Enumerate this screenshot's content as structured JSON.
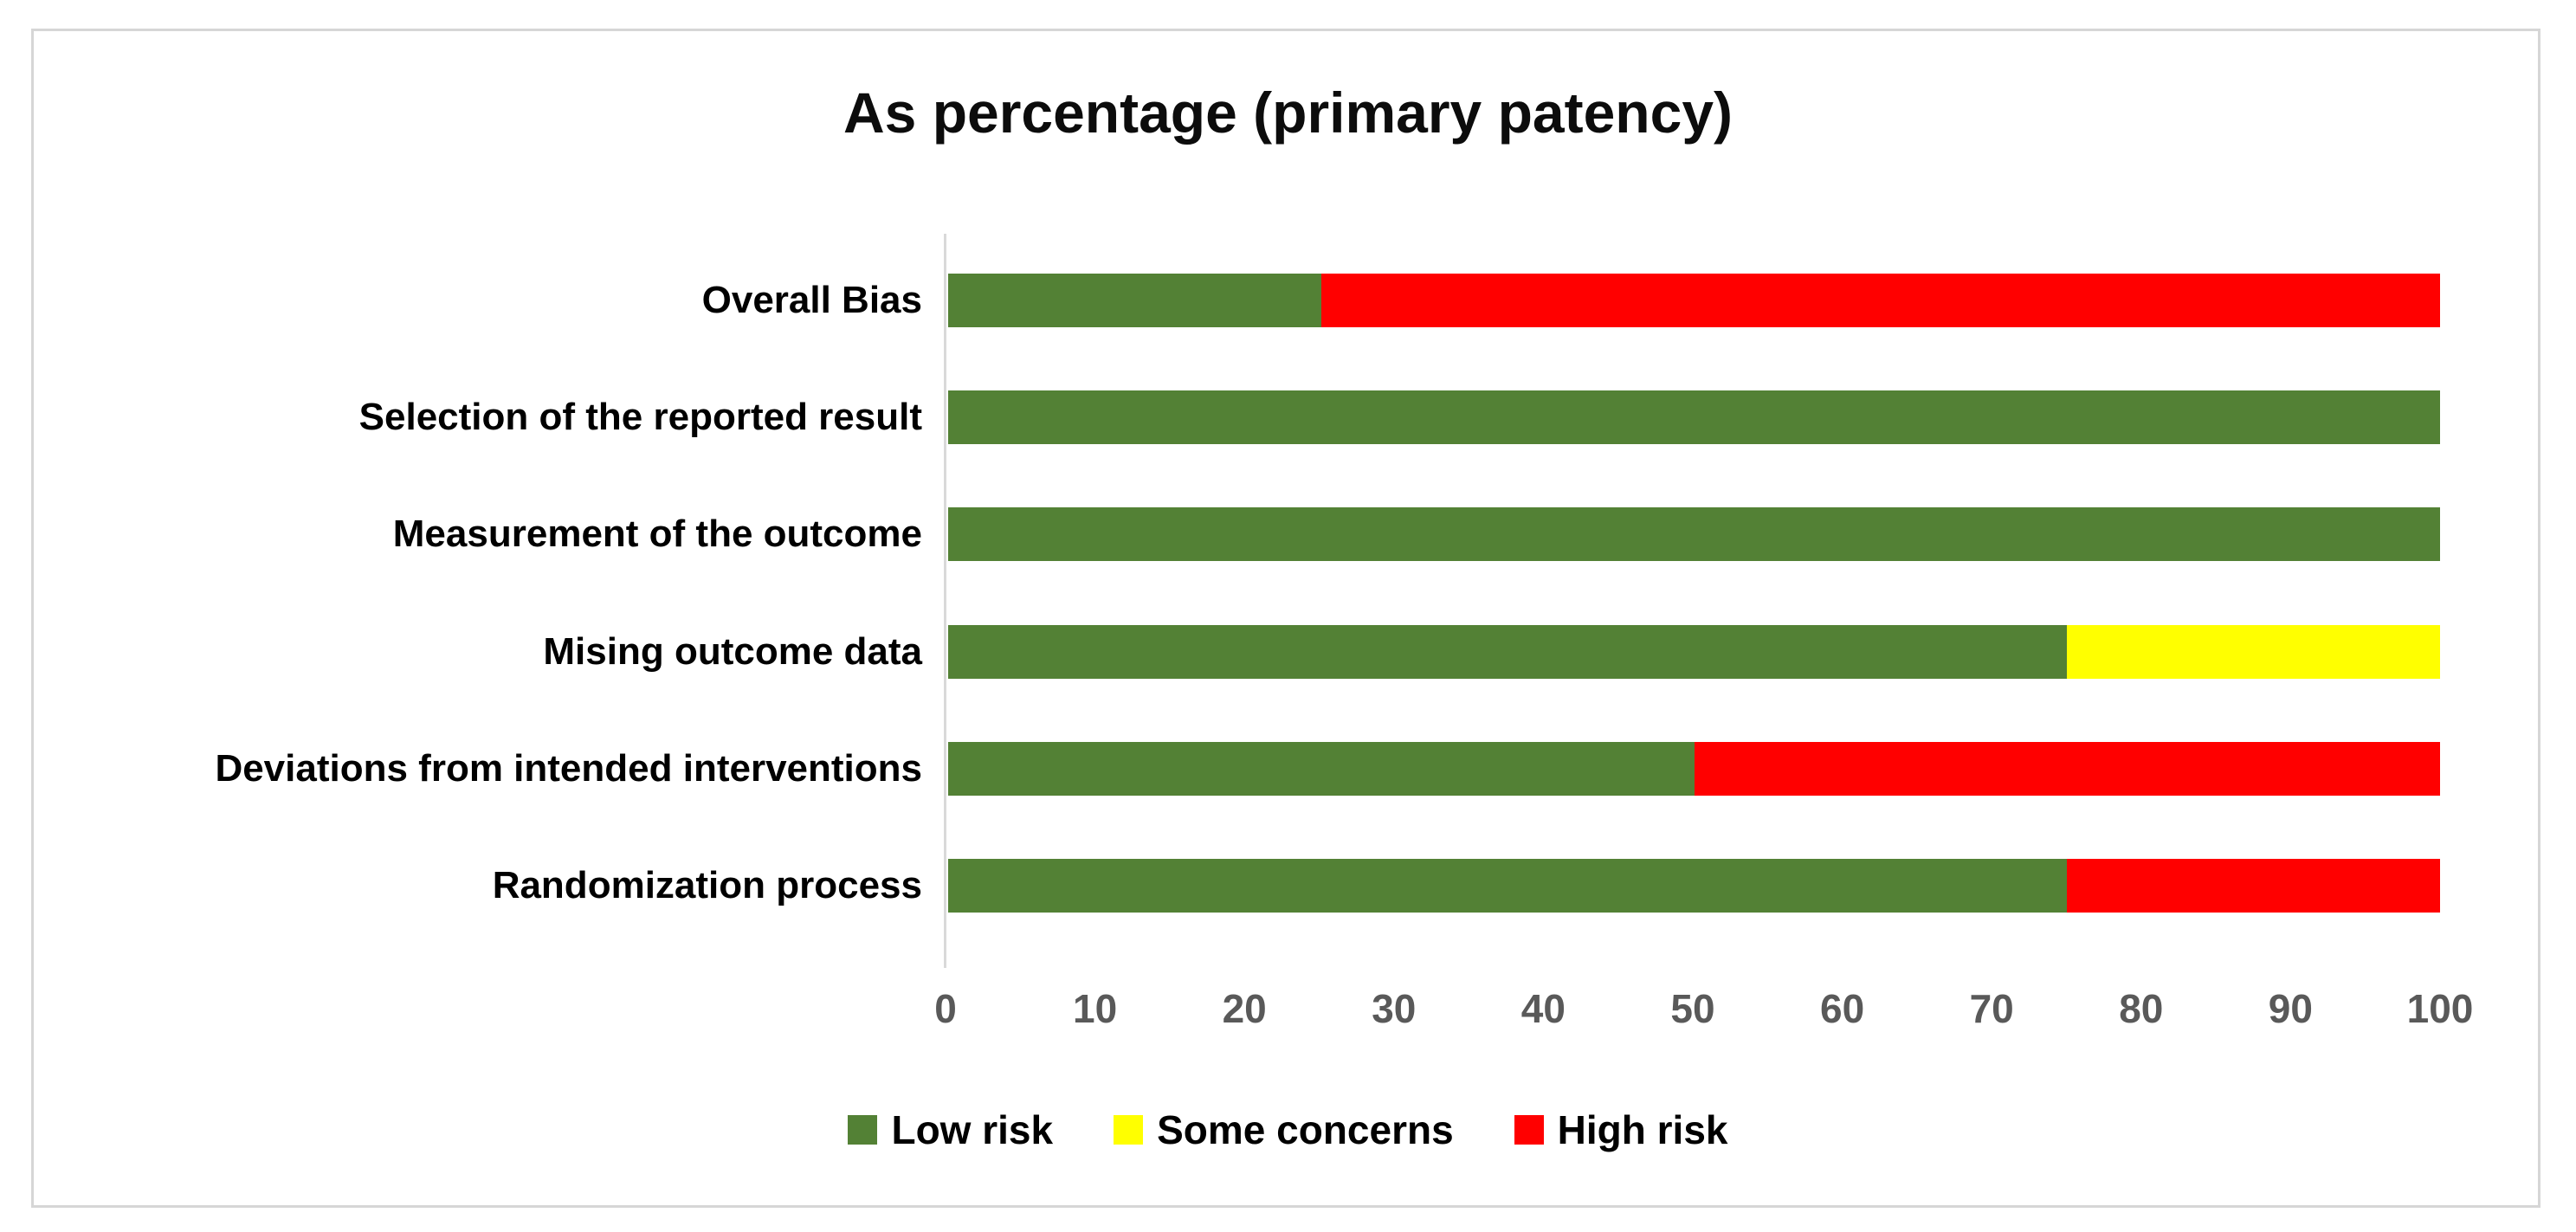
{
  "chart_data": {
    "type": "bar",
    "subtype": "stacked-horizontal",
    "title": "As percentage (primary patency)",
    "categories": [
      "Overall Bias",
      "Selection of the reported result",
      "Measurement of the outcome",
      "Mising outcome data",
      "Deviations from intended interventions",
      "Randomization process"
    ],
    "series": [
      {
        "name": "Low risk",
        "color": "#538135",
        "values": [
          25,
          100,
          100,
          75,
          50,
          75
        ]
      },
      {
        "name": "Some concerns",
        "color": "#FFFF00",
        "values": [
          0,
          0,
          0,
          25,
          0,
          0
        ]
      },
      {
        "name": "High risk",
        "color": "#FF0000",
        "values": [
          75,
          0,
          0,
          0,
          50,
          25
        ]
      }
    ],
    "x_axis": {
      "min": 0,
      "max": 100,
      "tick_interval": 10,
      "tick_labels": [
        "0",
        "10",
        "20",
        "30",
        "40",
        "50",
        "60",
        "70",
        "80",
        "90",
        "100"
      ]
    },
    "legend": {
      "position": "bottom",
      "entries": [
        "Low risk",
        "Some concerns",
        "High risk"
      ]
    },
    "gridlines": false
  },
  "colors": {
    "low_risk": "#538135",
    "some_concerns": "#FFFF00",
    "high_risk": "#FF0000",
    "axis_text": "#595959",
    "axis_line": "#d9d9d9",
    "frame_border": "#d6d6d6",
    "title_text": "#0c0c0c",
    "category_text": "#000000"
  }
}
